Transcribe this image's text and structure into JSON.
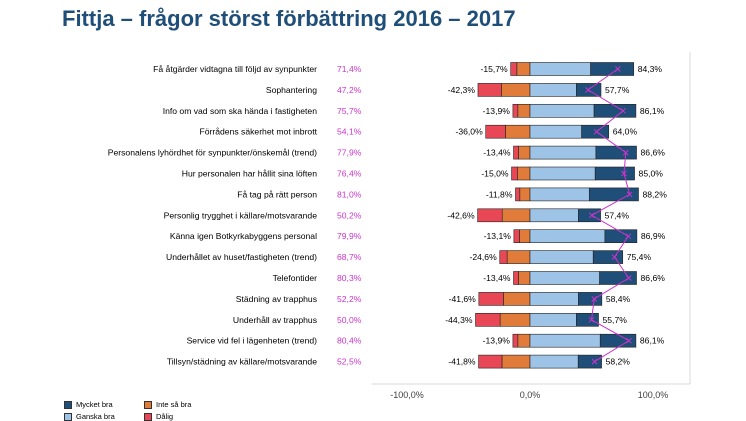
{
  "title": "Fittja – frågor störst förbättring 2016 – 2017",
  "chart_data": {
    "type": "bar",
    "subtype": "diverging-stacked-horizontal",
    "title": "Fittja – frågor störst förbättring 2016 – 2017",
    "xlim": [
      -100,
      100
    ],
    "x_ticks": [
      -100,
      0,
      100
    ],
    "x_tick_labels": [
      "-100,0%",
      "0,0%",
      "100,0%"
    ],
    "categories": [
      "Få åtgärder vidtagna till följd av synpunkter",
      "Sophantering",
      "Info om vad som ska hända i fastigheten",
      "Förrådens säkerhet mot inbrott",
      "Personalens lyhördhet för synpunkter/önskemål (trend)",
      "Hur personalen har hållit sina löften",
      "Få tag på rätt person",
      "Personlig trygghet i källare/motsvarande",
      "Känna igen Botkyrkabyggens personal",
      "Underhållet av huset/fastigheten (trend)",
      "Telefontider",
      "Städning av trapphus",
      "Underhåll av trapphus",
      "Service vid fel i lägenheten (trend)",
      "Tillsyn/städning av källare/motsvarande"
    ],
    "change_labels": [
      "71,4%",
      "47,2%",
      "75,7%",
      "54,1%",
      "77,9%",
      "76,4%",
      "81,0%",
      "50,2%",
      "79,9%",
      "68,7%",
      "80,3%",
      "52,2%",
      "50,0%",
      "80,4%",
      "52,5%"
    ],
    "negative_labels": [
      "-15,7%",
      "-42,3%",
      "-13,9%",
      "-36,0%",
      "-13,4%",
      "-15,0%",
      "-11,8%",
      "-42,6%",
      "-13,1%",
      "-24,6%",
      "-13,4%",
      "-41,6%",
      "-44,3%",
      "-13,9%",
      "-41,8%"
    ],
    "positive_labels": [
      "84,3%",
      "57,7%",
      "86,1%",
      "64,0%",
      "86,6%",
      "85,0%",
      "88,2%",
      "57,4%",
      "86,9%",
      "75,4%",
      "86,6%",
      "58,4%",
      "55,7%",
      "86,1%",
      "58,2%"
    ],
    "series": [
      {
        "name": "Mycket bra",
        "color": "#1f4e79",
        "values": [
          35.0,
          20.0,
          34.0,
          22.0,
          33.0,
          32.0,
          40.0,
          18.0,
          26.0,
          24.0,
          30.0,
          19.0,
          18.0,
          29.0,
          19.0
        ]
      },
      {
        "name": "Ganska bra",
        "color": "#9dc3e6",
        "values": [
          49.3,
          37.7,
          52.1,
          42.0,
          53.6,
          53.0,
          48.2,
          39.4,
          60.9,
          51.4,
          56.6,
          39.4,
          37.7,
          57.1,
          39.2
        ]
      },
      {
        "name": "Inte så bra",
        "color": "#e07b39",
        "values": [
          -10.7,
          -23.3,
          -9.9,
          -20.0,
          -9.4,
          -10.0,
          -8.3,
          -22.6,
          -8.6,
          -18.6,
          -9.4,
          -21.6,
          -24.3,
          -9.9,
          -22.8
        ]
      },
      {
        "name": "Dålig",
        "color": "#e84855",
        "values": [
          -5.0,
          -19.0,
          -4.0,
          -16.0,
          -4.0,
          -5.0,
          -3.5,
          -20.0,
          -4.5,
          -6.0,
          -4.0,
          -20.0,
          -20.0,
          -4.0,
          -19.0
        ]
      }
    ],
    "trend_line": {
      "color": "#cc33cc",
      "values": [
        71.4,
        47.2,
        75.7,
        54.1,
        77.9,
        76.4,
        81.0,
        50.2,
        79.9,
        68.7,
        80.3,
        52.2,
        50.0,
        80.4,
        52.5
      ]
    },
    "legend": [
      {
        "label": "Mycket bra",
        "color": "#1f4e79"
      },
      {
        "label": "Inte så bra",
        "color": "#e07b39"
      },
      {
        "label": "Ganska bra",
        "color": "#9dc3e6"
      },
      {
        "label": "Dålig",
        "color": "#e84855"
      }
    ]
  }
}
